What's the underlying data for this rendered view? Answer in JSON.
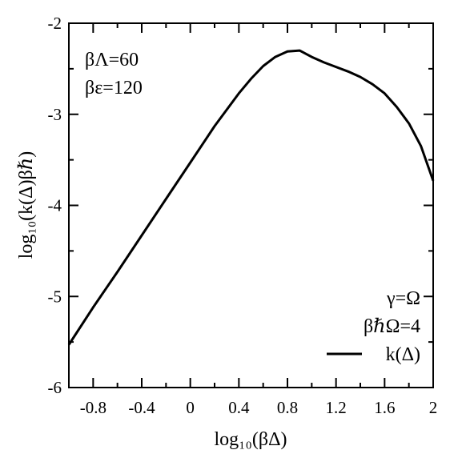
{
  "chart_data": {
    "type": "line",
    "xlabel": "log₁₀(βΔ)",
    "ylabel": "log₁₀(k(Δ)βℏ)",
    "xlim": [
      -1,
      2
    ],
    "ylim": [
      -6,
      -2
    ],
    "x_ticks": [
      -0.8,
      -0.4,
      0,
      0.4,
      0.8,
      1.2,
      1.6,
      2
    ],
    "x_tick_labels": [
      "-0.8",
      "-0.4",
      "0",
      "0.4",
      "0.8",
      "1.2",
      "1.6",
      "2"
    ],
    "y_ticks": [
      -6,
      -5,
      -4,
      -3,
      -2
    ],
    "y_tick_labels": [
      "-6",
      "-5",
      "-4",
      "-3",
      "-2"
    ],
    "grid": false,
    "annotations": {
      "top_left": [
        "βΛ=60",
        "βε=120"
      ],
      "bottom_right": [
        "γ=Ω",
        "βℏΩ=4"
      ]
    },
    "legend_position": "bottom-right",
    "series": [
      {
        "name": "k(Δ)",
        "color": "#000000",
        "x": [
          -1.0,
          -0.8,
          -0.6,
          -0.4,
          -0.2,
          0.0,
          0.2,
          0.4,
          0.5,
          0.6,
          0.7,
          0.8,
          0.9,
          1.0,
          1.1,
          1.2,
          1.3,
          1.4,
          1.5,
          1.6,
          1.7,
          1.8,
          1.9,
          2.0
        ],
        "y": [
          -5.53,
          -5.12,
          -4.73,
          -4.33,
          -3.93,
          -3.53,
          -3.13,
          -2.77,
          -2.61,
          -2.47,
          -2.37,
          -2.31,
          -2.3,
          -2.37,
          -2.43,
          -2.48,
          -2.53,
          -2.59,
          -2.67,
          -2.77,
          -2.92,
          -3.1,
          -3.35,
          -3.73
        ]
      }
    ]
  }
}
